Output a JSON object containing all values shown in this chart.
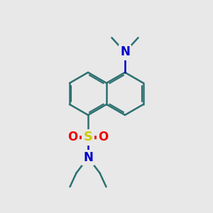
{
  "bg_color": "#e8e8e8",
  "bond_color": "#2d7070",
  "N_color": "#0000cc",
  "S_color": "#cccc00",
  "O_color": "#ee0000",
  "line_width": 1.8,
  "fig_size": [
    3.0,
    3.0
  ],
  "dpi": 100,
  "xlim": [
    0,
    10
  ],
  "ylim": [
    0,
    10
  ]
}
